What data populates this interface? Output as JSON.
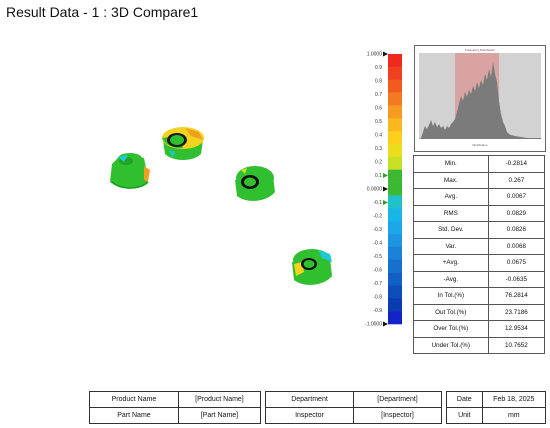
{
  "title": "Result Data - 1 :  3D Compare1",
  "color_scale": {
    "labels": [
      "1.0000",
      "0.9",
      "0.8",
      "0.7",
      "0.6",
      "0.5",
      "0.4",
      "0.3",
      "0.2",
      "0.1",
      "0.0000",
      "-0.1",
      "-0.2",
      "-0.3",
      "-0.4",
      "-0.5",
      "-0.6",
      "-0.7",
      "-0.8",
      "-0.9",
      "-1.0000"
    ],
    "colors": [
      "#ee2a1f",
      "#f04020",
      "#f25a20",
      "#f47a21",
      "#f79a22",
      "#f9b81f",
      "#fbcf1c",
      "#ecdd1c",
      "#c7df24",
      "#3db834",
      "#3db834",
      "#1fc2c9",
      "#18b6e6",
      "#1ca7ea",
      "#1d95e3",
      "#1a82d8",
      "#1670cd",
      "#1160c4",
      "#0d4dba",
      "#0a3cb0",
      "#1323c8"
    ]
  },
  "histogram": {
    "title": "Frequency Distribution",
    "xlabel": "Distribution"
  },
  "stats": [
    {
      "label": "Min.",
      "value": "-0.2814"
    },
    {
      "label": "Max.",
      "value": "0.267"
    },
    {
      "label": "Avg.",
      "value": "0.0067"
    },
    {
      "label": "RMS",
      "value": "0.0829"
    },
    {
      "label": "Std. Dev.",
      "value": "0.0826"
    },
    {
      "label": "Var.",
      "value": "0.0068"
    },
    {
      "label": "+Avg.",
      "value": "0.0675"
    },
    {
      "label": "-Avg.",
      "value": "-0.0635"
    },
    {
      "label": "In Tol.(%)",
      "value": "76.2814"
    },
    {
      "label": "Out Tol.(%)",
      "value": "23.7186"
    },
    {
      "label": "Over Tol.(%)",
      "value": "12.9534"
    },
    {
      "label": "Under Tol.(%)",
      "value": "10.7652"
    }
  ],
  "info": {
    "product_name_label": "Product Name",
    "product_name": "[Product Name]",
    "part_name_label": "Part Name",
    "part_name": "[Part Name]",
    "department_label": "Department",
    "department": "[Department]",
    "inspector_label": "Inspector",
    "inspector": "[Inspector]",
    "date_label": "Date",
    "date": "Feb 18, 2025",
    "unit_label": "Unit",
    "unit": "mm"
  },
  "colors": {
    "green": "#2fbf2f",
    "yellow": "#f2d320",
    "orange": "#f0a020",
    "cyan": "#1ec8d8"
  }
}
